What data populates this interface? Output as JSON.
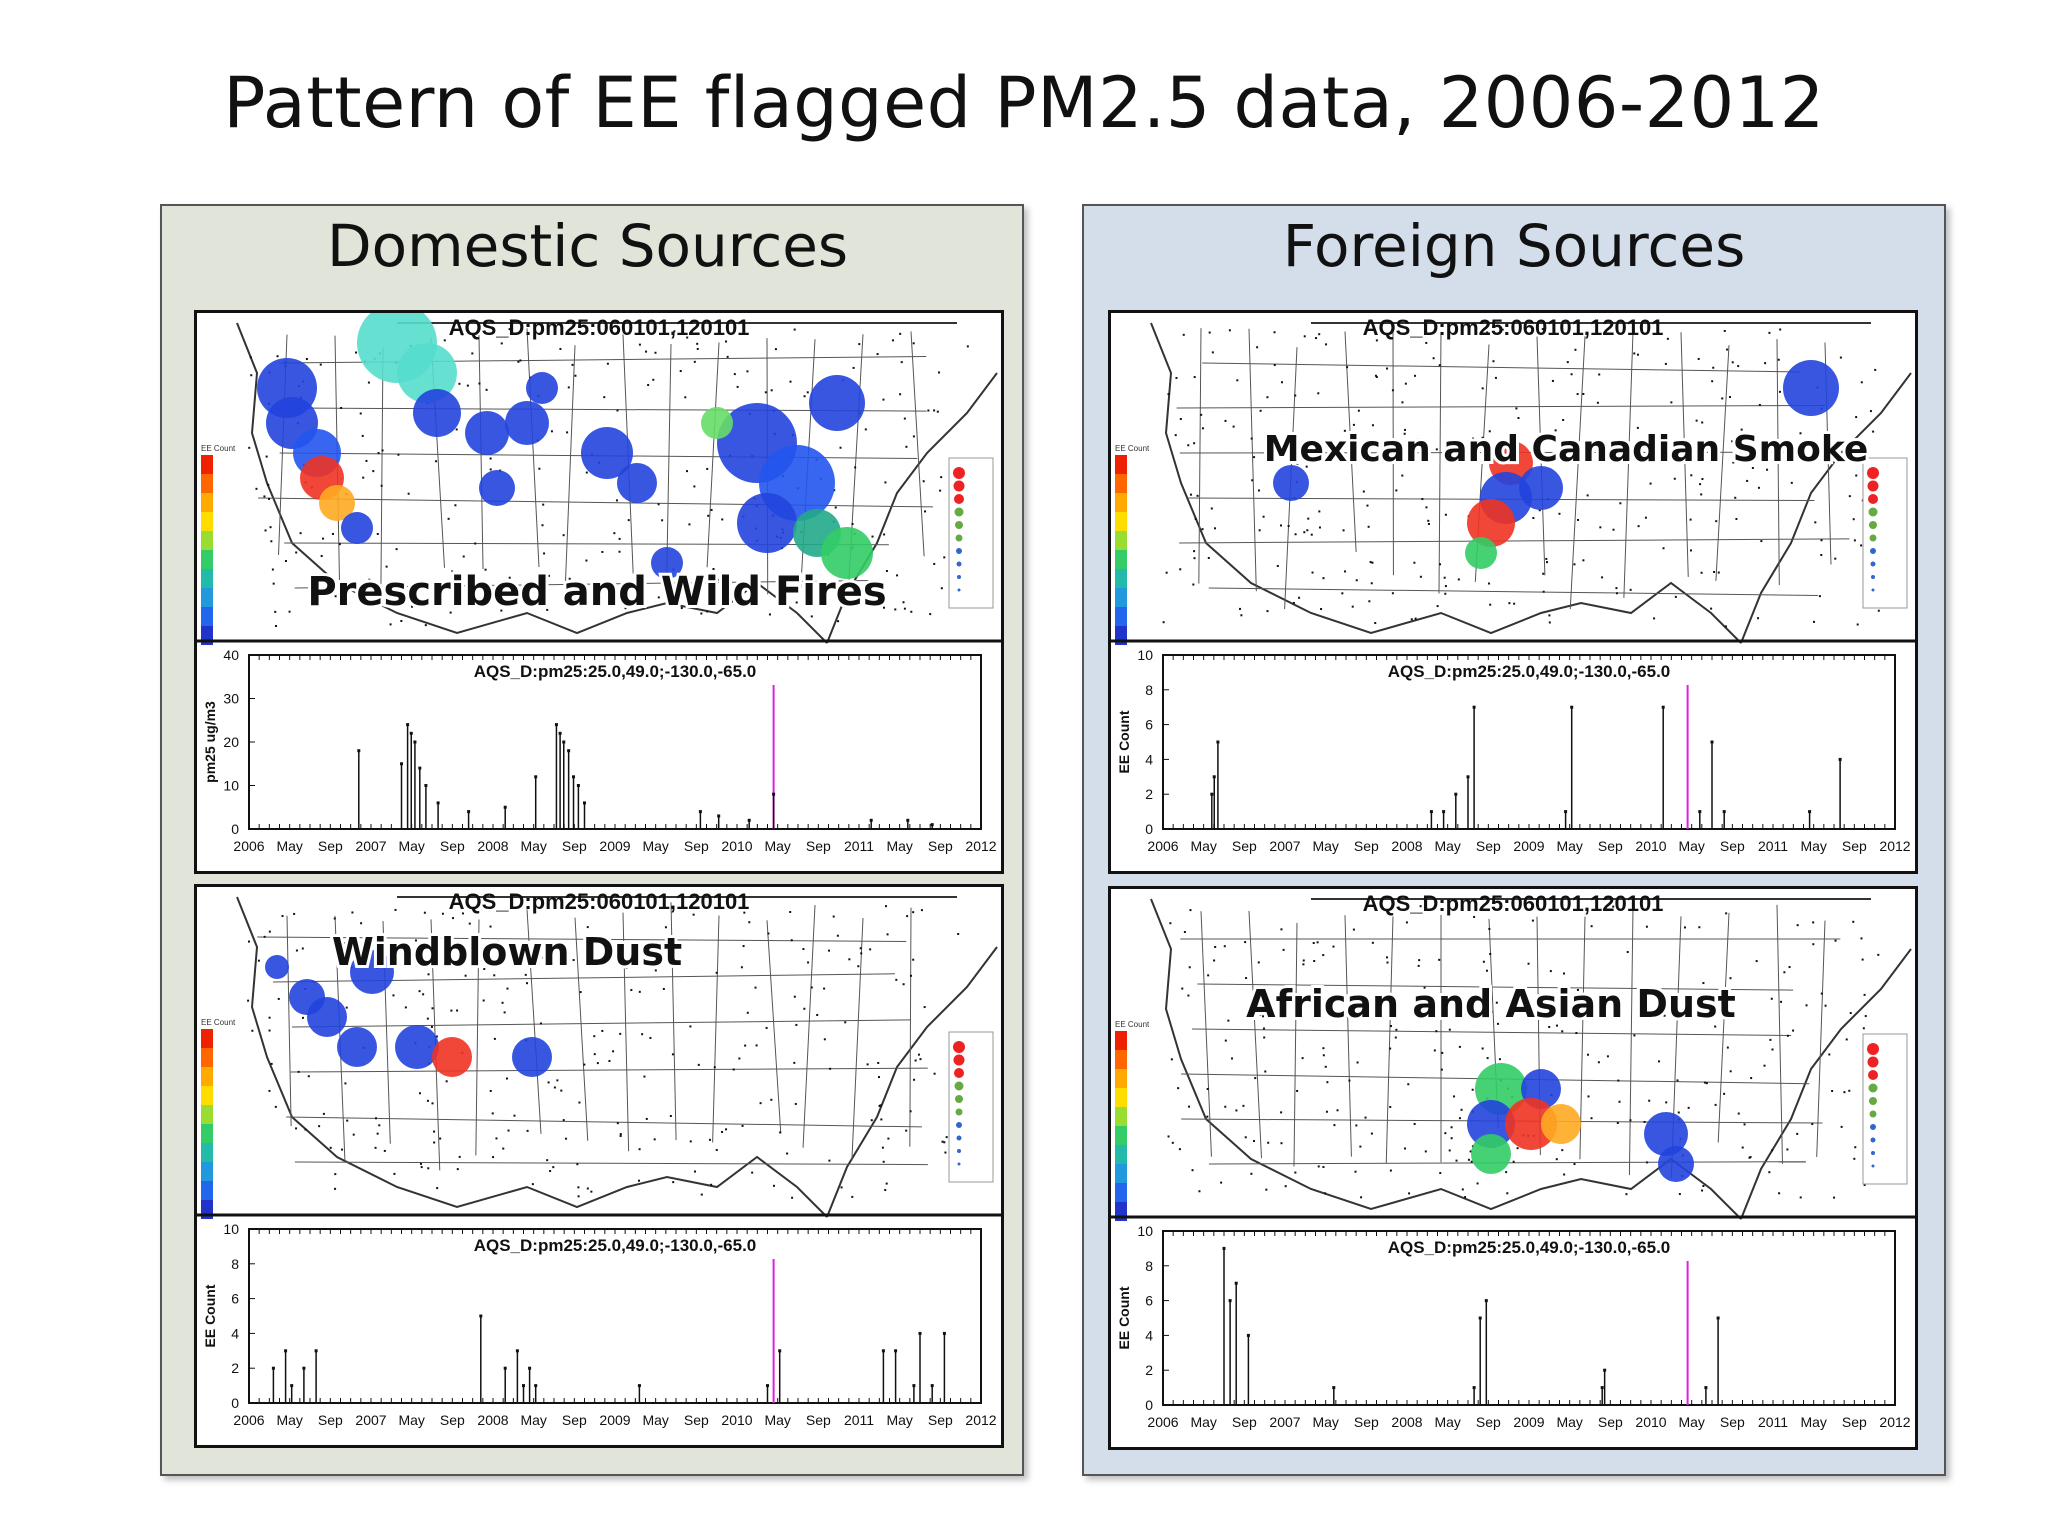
{
  "slide": {
    "title": "Pattern of EE flagged PM2.5 data, 2006-2012"
  },
  "panels": [
    {
      "heading": "Domestic Sources",
      "color": "#e1e4d8"
    },
    {
      "heading": "Foreign Sources",
      "color": "#d4deea"
    }
  ],
  "chart_data": [
    {
      "type": "scatter",
      "panel": "Domestic Sources",
      "map_title": "AQS_D:pm25:060101,120101",
      "overlay_label": "Prescribed and Wild Fires",
      "ts_title": "AQS_D:pm25:25.0,49.0;-130.0,-65.0",
      "ylabel": "pm25 ug/m3",
      "ylim": [
        0,
        40
      ],
      "yticks": [
        0,
        10,
        20,
        30,
        40
      ],
      "xlim": [
        2006.0,
        2012.0
      ],
      "xtick_labels": [
        "2006",
        "May",
        "Sep",
        "2007",
        "May",
        "Sep",
        "2008",
        "May",
        "Sep",
        "2009",
        "May",
        "Sep",
        "2010",
        "May",
        "Sep",
        "2011",
        "May",
        "Sep",
        "2012"
      ],
      "marker_year": 2010.3,
      "x": [
        2006.9,
        2007.25,
        2007.3,
        2007.33,
        2007.36,
        2007.4,
        2007.45,
        2007.55,
        2007.8,
        2008.1,
        2008.35,
        2008.52,
        2008.55,
        2008.58,
        2008.62,
        2008.66,
        2008.7,
        2008.75,
        2009.7,
        2009.85,
        2010.1,
        2010.3,
        2011.1,
        2011.4,
        2011.6
      ],
      "y": [
        18,
        15,
        24,
        22,
        20,
        14,
        10,
        6,
        4,
        5,
        12,
        24,
        22,
        20,
        18,
        12,
        10,
        6,
        4,
        3,
        2,
        8,
        2,
        2,
        1
      ]
    },
    {
      "type": "scatter",
      "panel": "Foreign Sources",
      "map_title": "AQS_D:pm25:060101,120101",
      "overlay_label": "Mexican and Canadian Smoke",
      "ts_title": "AQS_D:pm25:25.0,49.0;-130.0,-65.0",
      "ylabel": "EE Count",
      "ylim": [
        0,
        10
      ],
      "yticks": [
        0,
        2,
        4,
        6,
        8,
        10
      ],
      "xlim": [
        2006.0,
        2012.0
      ],
      "xtick_labels": [
        "2006",
        "May",
        "Sep",
        "2007",
        "May",
        "Sep",
        "2008",
        "May",
        "Sep",
        "2009",
        "May",
        "Sep",
        "2010",
        "May",
        "Sep",
        "2011",
        "May",
        "Sep",
        "2012"
      ],
      "marker_year": 2010.3,
      "x": [
        2006.4,
        2006.42,
        2006.45,
        2008.2,
        2008.3,
        2008.4,
        2008.5,
        2008.55,
        2009.3,
        2009.35,
        2010.1,
        2010.4,
        2010.5,
        2010.6,
        2011.3,
        2011.55
      ],
      "y": [
        2,
        3,
        5,
        1,
        1,
        2,
        3,
        7,
        1,
        7,
        7,
        1,
        5,
        1,
        1,
        4
      ]
    },
    {
      "type": "scatter",
      "panel": "Domestic Sources",
      "map_title": "AQS_D:pm25:060101,120101",
      "overlay_label": "Windblown Dust",
      "ts_title": "AQS_D:pm25:25.0,49.0;-130.0,-65.0",
      "ylabel": "EE Count",
      "ylim": [
        0,
        10
      ],
      "yticks": [
        0,
        2,
        4,
        6,
        8,
        10
      ],
      "xlim": [
        2006.0,
        2012.0
      ],
      "xtick_labels": [
        "2006",
        "May",
        "Sep",
        "2007",
        "May",
        "Sep",
        "2008",
        "May",
        "Sep",
        "2009",
        "May",
        "Sep",
        "2010",
        "May",
        "Sep",
        "2011",
        "May",
        "Sep",
        "2012"
      ],
      "marker_year": 2010.3,
      "x": [
        2006.2,
        2006.3,
        2006.35,
        2006.45,
        2006.55,
        2007.9,
        2008.1,
        2008.2,
        2008.25,
        2008.3,
        2008.35,
        2009.2,
        2010.25,
        2010.35,
        2011.2,
        2011.3,
        2011.45,
        2011.5,
        2011.6,
        2011.7
      ],
      "y": [
        2,
        3,
        1,
        2,
        3,
        5,
        2,
        3,
        1,
        2,
        1,
        1,
        1,
        3,
        3,
        3,
        1,
        4,
        1,
        4
      ]
    },
    {
      "type": "scatter",
      "panel": "Foreign Sources",
      "map_title": "AQS_D:pm25:060101,120101",
      "overlay_label": "African and Asian Dust",
      "ts_title": "AQS_D:pm25:25.0,49.0;-130.0,-65.0",
      "ylabel": "EE Count",
      "ylim": [
        0,
        10
      ],
      "yticks": [
        0,
        2,
        4,
        6,
        8,
        10
      ],
      "xlim": [
        2006.0,
        2012.0
      ],
      "xtick_labels": [
        "2006",
        "May",
        "Sep",
        "2007",
        "May",
        "Sep",
        "2008",
        "May",
        "Sep",
        "2009",
        "May",
        "Sep",
        "2010",
        "May",
        "Sep",
        "2011",
        "May",
        "Sep",
        "2012"
      ],
      "marker_year": 2010.3,
      "x": [
        2006.5,
        2006.55,
        2006.6,
        2006.7,
        2007.4,
        2008.55,
        2008.6,
        2008.65,
        2009.6,
        2009.62,
        2010.45,
        2010.55
      ],
      "y": [
        9,
        6,
        7,
        4,
        1,
        1,
        5,
        6,
        1,
        2,
        1,
        5
      ]
    }
  ]
}
